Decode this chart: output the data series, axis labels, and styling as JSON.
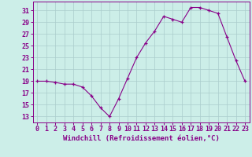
{
  "x_vals": [
    0,
    1,
    2,
    3,
    4,
    5,
    6,
    7,
    8,
    9,
    10,
    11,
    12,
    13,
    14,
    15,
    16,
    17,
    18,
    19,
    20,
    21,
    22,
    23
  ],
  "y_vals": [
    19,
    19,
    18.8,
    18.5,
    18.5,
    18.0,
    16.5,
    14.5,
    13.0,
    16.0,
    19.5,
    23.0,
    25.5,
    27.5,
    30.0,
    29.5,
    29.0,
    31.5,
    31.5,
    31.0,
    30.5,
    26.5,
    22.5,
    19.0
  ],
  "line_color": "#880088",
  "bg_color": "#cceee8",
  "grid_color": "#aacccc",
  "xlabel": "Windchill (Refroidissement éolien,°C)",
  "yticks": [
    13,
    15,
    17,
    19,
    21,
    23,
    25,
    27,
    29,
    31
  ],
  "xlim": [
    -0.5,
    23.5
  ],
  "ylim": [
    12.0,
    32.5
  ],
  "tick_fontsize": 6.0,
  "label_fontsize": 6.5
}
